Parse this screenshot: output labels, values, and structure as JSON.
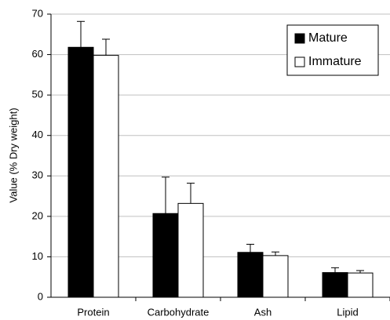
{
  "chart_data": {
    "type": "bar",
    "y_label": "Value (% Dry weight)",
    "categories": [
      "Protein",
      "Carbohydrate",
      "Ash",
      "Lipid"
    ],
    "series": [
      {
        "name": "Mature",
        "color": "#000000",
        "values": [
          61.8,
          20.7,
          11.1,
          6.1
        ],
        "errors": [
          6.4,
          9.0,
          2.0,
          1.2
        ]
      },
      {
        "name": "Immature",
        "color": "#ffffff",
        "values": [
          59.8,
          23.2,
          10.3,
          6.0
        ],
        "errors": [
          4.0,
          5.0,
          0.9,
          0.6
        ]
      }
    ],
    "ylim": [
      0,
      70
    ],
    "yticks": [
      0,
      10,
      20,
      30,
      40,
      50,
      60,
      70
    ],
    "grid": true,
    "legend": "upper right"
  }
}
